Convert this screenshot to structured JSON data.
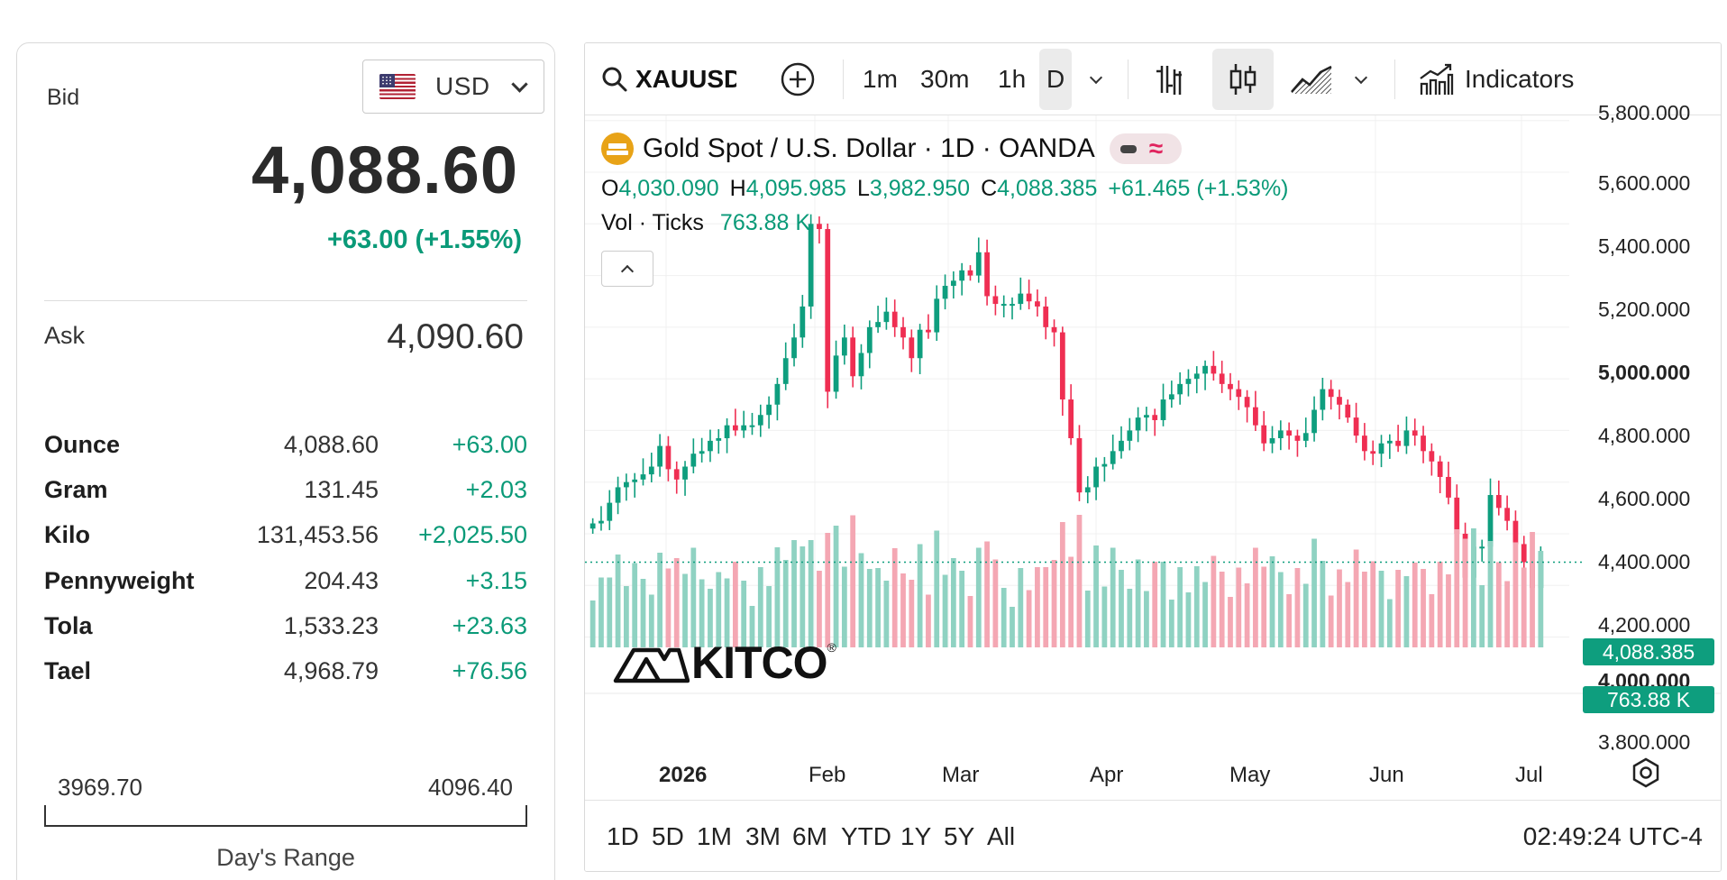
{
  "currency": {
    "code": "USD",
    "flag_icon": "us-flag-icon"
  },
  "quote": {
    "bid_label": "Bid",
    "bid": "4,088.60",
    "change": "+63.00 (+1.55%)",
    "ask_label": "Ask",
    "ask": "4,090.60"
  },
  "units": [
    {
      "name": "Ounce",
      "price": "4,088.60",
      "change": "+63.00"
    },
    {
      "name": "Gram",
      "price": "131.45",
      "change": "+2.03"
    },
    {
      "name": "Kilo",
      "price": "131,453.56",
      "change": "+2,025.50"
    },
    {
      "name": "Pennyweight",
      "price": "204.43",
      "change": "+3.15"
    },
    {
      "name": "Tola",
      "price": "1,533.23",
      "change": "+23.63"
    },
    {
      "name": "Tael",
      "price": "4,968.79",
      "change": "+76.56"
    }
  ],
  "days_range": {
    "low": "3969.70",
    "high": "4096.40",
    "label": "Day's Range"
  },
  "toolbar": {
    "symbol": "XAUUSD",
    "intervals": [
      "1m",
      "30m",
      "1h",
      "D"
    ],
    "active_interval": "D",
    "indicators_label": "Indicators",
    "icons": [
      "search-icon",
      "add-symbol-icon",
      "bar-chart-icon",
      "candles-icon",
      "area-chart-icon",
      "indicators-icon"
    ]
  },
  "legend": {
    "title": "Gold Spot / U.S. Dollar · 1D · OANDA",
    "o_label": "O",
    "o": "4,030.090",
    "h_label": "H",
    "h": "4,095.985",
    "l_label": "L",
    "l": "3,982.950",
    "c_label": "C",
    "c": "4,088.385",
    "change": "+61.465 (+1.53%)",
    "vol_label": "Vol · Ticks",
    "vol": "763.88 K"
  },
  "y_axis": {
    "top_partial": "5,800.000",
    "labels": [
      "5,600.000",
      "5,400.000",
      "5,200.000",
      "5,000.000",
      "4,800.000",
      "4,600.000",
      "4,400.000",
      "4,200.000",
      "4,000.000"
    ],
    "bottom_partial": "3,800.000",
    "current_price": "4,088.385",
    "current_volume": "763.88 K"
  },
  "x_axis": {
    "labels": [
      "2026",
      "Feb",
      "Mar",
      "Apr",
      "May",
      "Jun",
      "Jul"
    ]
  },
  "watermark": "KITCO",
  "ranges": [
    "1D",
    "5D",
    "1M",
    "3M",
    "6M",
    "YTD",
    "1Y",
    "5Y",
    "All"
  ],
  "clock": "02:49:24 UTC-4",
  "chart_data": {
    "type": "candlestick",
    "symbol": "XAUUSD",
    "interval": "1D",
    "ylim": [
      3760,
      5820
    ],
    "up_color": "#0e9e7e",
    "down_color": "#ef2e52",
    "series": [
      4240,
      4250,
      4320,
      4380,
      4400,
      4410,
      4430,
      4460,
      4540,
      4450,
      4410,
      4460,
      4510,
      4520,
      4560,
      4570,
      4620,
      4600,
      4620,
      4620,
      4660,
      4700,
      4780,
      4880,
      4960,
      5080,
      5400,
      5380,
      4750,
      4890,
      4960,
      4810,
      4900,
      5000,
      5020,
      5060,
      5000,
      4960,
      4880,
      4990,
      4980,
      5110,
      5160,
      5180,
      5220,
      5200,
      5290,
      5120,
      5090,
      5090,
      5090,
      5130,
      5100,
      5080,
      5000,
      4980,
      4720,
      4570,
      4360,
      4380,
      4460,
      4470,
      4520,
      4560,
      4600,
      4650,
      4660,
      4640,
      4720,
      4740,
      4780,
      4800,
      4820,
      4850,
      4820,
      4780,
      4760,
      4730,
      4690,
      4620,
      4550,
      4570,
      4600,
      4580,
      4560,
      4590,
      4680,
      4760,
      4730,
      4700,
      4650,
      4580,
      4520,
      4510,
      4550,
      4560,
      4540,
      4600,
      4580,
      4520,
      4480,
      4420,
      4340,
      4200,
      4030,
      4150,
      4150,
      4350,
      4300,
      4250,
      4160,
      4090,
      3990,
      4090
    ]
  }
}
